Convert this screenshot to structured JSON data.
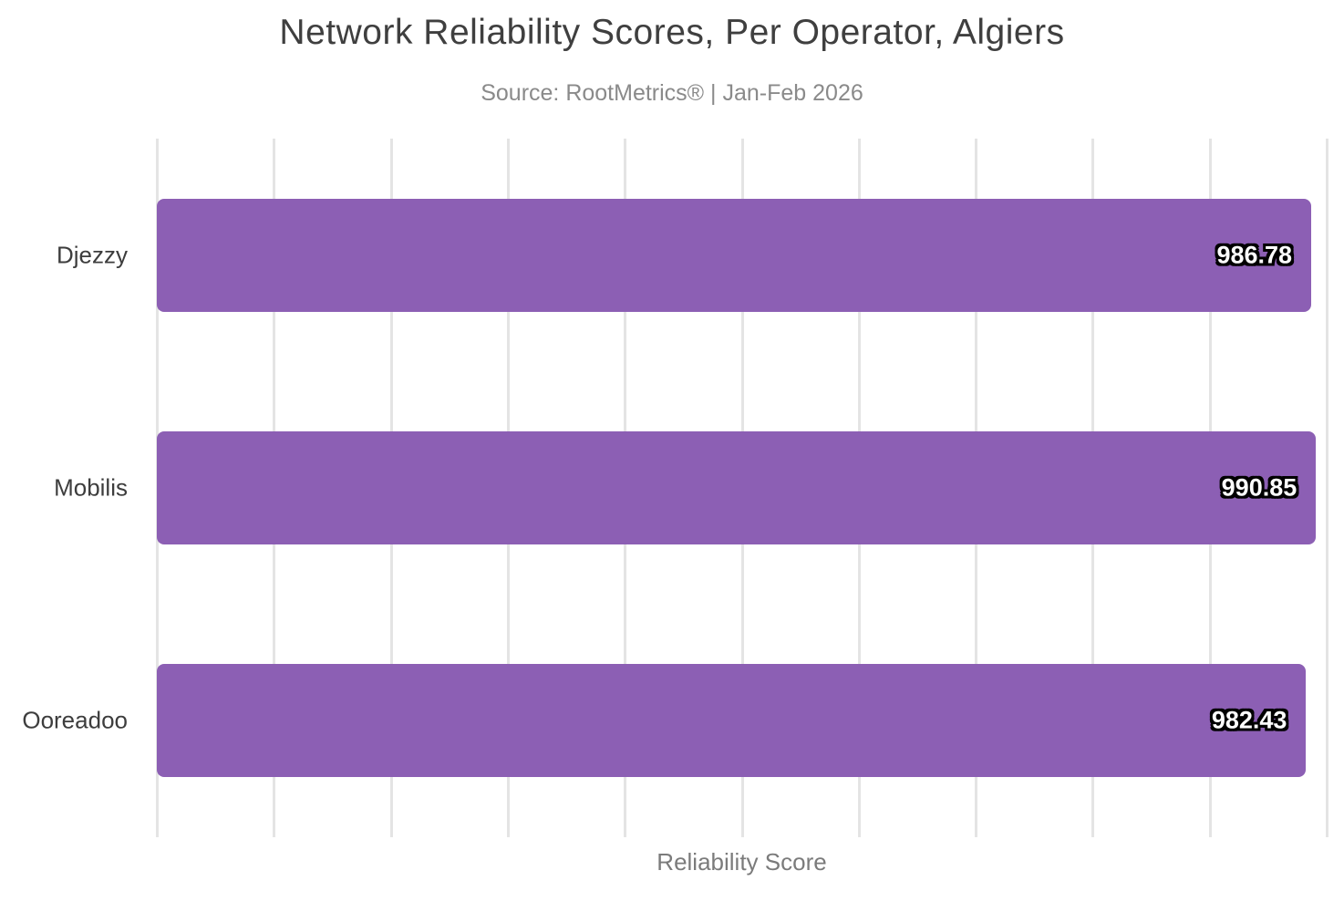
{
  "title": "Network Reliability Scores, Per Operator, Algiers",
  "subtitle": "Source: RootMetrics® | Jan-Feb 2026",
  "chart_data": {
    "type": "bar",
    "orientation": "horizontal",
    "title": "Network Reliability Scores, Per Operator, Algiers",
    "subtitle": "Source: RootMetrics® | Jan-Feb 2026",
    "categories": [
      "Djezzy",
      "Mobilis",
      "Ooreadoo"
    ],
    "values": [
      986.78,
      990.85,
      982.43
    ],
    "value_labels": [
      "986.78",
      "990.85",
      "982.43"
    ],
    "xlabel": "Reliability Score",
    "ylabel": "",
    "xlim": [
      0,
      1000
    ],
    "gridline_interval": 100,
    "grid": "vertical-only",
    "tick_labels": "none",
    "legend": "none",
    "bar_color": "#8c5fb4",
    "gridline_color": "#e4e4e4",
    "value_label_color": "#ffffff",
    "value_label_outline": "#000000"
  }
}
